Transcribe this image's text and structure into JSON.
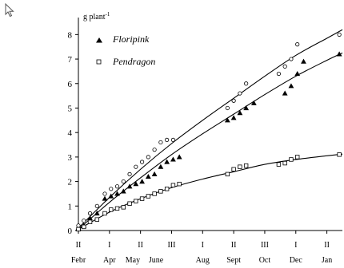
{
  "cursor": {
    "icon": "arrow-cursor-icon"
  },
  "chart_data": {
    "type": "scatter",
    "y_unit_label": "g plant",
    "y_unit_superscript": "-1",
    "ylim": [
      0,
      8.5
    ],
    "y_ticks": [
      0,
      1,
      2,
      3,
      4,
      5,
      6,
      7,
      8
    ],
    "x_domain": [
      0,
      34
    ],
    "x_axis_rows": {
      "dekads": [
        {
          "label": "II",
          "x": 0
        },
        {
          "label": "I",
          "x": 4
        },
        {
          "label": "II",
          "x": 8
        },
        {
          "label": "III",
          "x": 12
        },
        {
          "label": "I",
          "x": 16
        },
        {
          "label": "II",
          "x": 20
        },
        {
          "label": "III",
          "x": 24
        },
        {
          "label": "I",
          "x": 28
        },
        {
          "label": "II",
          "x": 32
        }
      ],
      "months": [
        {
          "label": "Febr",
          "x": 0
        },
        {
          "label": "Apr",
          "x": 4
        },
        {
          "label": "May",
          "x": 7
        },
        {
          "label": "June",
          "x": 10
        },
        {
          "label": "Aug",
          "x": 16
        },
        {
          "label": "Sept",
          "x": 20
        },
        {
          "label": "Oct",
          "x": 24
        },
        {
          "label": "Dec",
          "x": 28
        },
        {
          "label": "Jan",
          "x": 32
        }
      ]
    },
    "legend": {
      "placement": "top-left"
    },
    "series": [
      {
        "name": "Floripink",
        "marker": "triangle-filled",
        "points": [
          {
            "x": 0,
            "y": 0.1
          },
          {
            "x": 0.7,
            "y": 0.2
          },
          {
            "x": 1.5,
            "y": 0.5
          },
          {
            "x": 2.4,
            "y": 0.7
          },
          {
            "x": 3.4,
            "y": 1.3
          },
          {
            "x": 4.2,
            "y": 1.4
          },
          {
            "x": 5.0,
            "y": 1.5
          },
          {
            "x": 5.8,
            "y": 1.6
          },
          {
            "x": 6.6,
            "y": 1.8
          },
          {
            "x": 7.4,
            "y": 1.9
          },
          {
            "x": 8.2,
            "y": 2.0
          },
          {
            "x": 9.0,
            "y": 2.2
          },
          {
            "x": 9.8,
            "y": 2.3
          },
          {
            "x": 10.6,
            "y": 2.6
          },
          {
            "x": 11.4,
            "y": 2.8
          },
          {
            "x": 12.2,
            "y": 2.9
          },
          {
            "x": 13.0,
            "y": 3.0
          },
          {
            "x": 19.2,
            "y": 4.5
          },
          {
            "x": 20.0,
            "y": 4.6
          },
          {
            "x": 20.8,
            "y": 4.8
          },
          {
            "x": 21.6,
            "y": 5.0
          },
          {
            "x": 22.6,
            "y": 5.2
          },
          {
            "x": 26.6,
            "y": 5.6
          },
          {
            "x": 27.4,
            "y": 5.9
          },
          {
            "x": 28.2,
            "y": 6.4
          },
          {
            "x": 29.0,
            "y": 6.9
          },
          {
            "x": 33.6,
            "y": 7.2
          }
        ],
        "fit_curve": [
          {
            "x": 0,
            "y": 0.05
          },
          {
            "x": 4,
            "y": 1.15
          },
          {
            "x": 8,
            "y": 2.15
          },
          {
            "x": 12,
            "y": 3.1
          },
          {
            "x": 16,
            "y": 3.95
          },
          {
            "x": 20,
            "y": 4.75
          },
          {
            "x": 24,
            "y": 5.55
          },
          {
            "x": 28,
            "y": 6.3
          },
          {
            "x": 32,
            "y": 6.95
          },
          {
            "x": 34,
            "y": 7.25
          }
        ]
      },
      {
        "name": "",
        "marker": "circle-open",
        "points": [
          {
            "x": 0,
            "y": 0.2
          },
          {
            "x": 0.7,
            "y": 0.4
          },
          {
            "x": 1.5,
            "y": 0.7
          },
          {
            "x": 2.4,
            "y": 1.0
          },
          {
            "x": 3.4,
            "y": 1.5
          },
          {
            "x": 4.2,
            "y": 1.7
          },
          {
            "x": 5.0,
            "y": 1.8
          },
          {
            "x": 5.8,
            "y": 2.0
          },
          {
            "x": 6.6,
            "y": 2.3
          },
          {
            "x": 7.4,
            "y": 2.6
          },
          {
            "x": 8.2,
            "y": 2.8
          },
          {
            "x": 9.0,
            "y": 3.0
          },
          {
            "x": 9.8,
            "y": 3.3
          },
          {
            "x": 10.6,
            "y": 3.6
          },
          {
            "x": 11.4,
            "y": 3.7
          },
          {
            "x": 12.2,
            "y": 3.7
          },
          {
            "x": 19.2,
            "y": 5.0
          },
          {
            "x": 20.0,
            "y": 5.3
          },
          {
            "x": 20.8,
            "y": 5.6
          },
          {
            "x": 21.6,
            "y": 6.0
          },
          {
            "x": 25.8,
            "y": 6.4
          },
          {
            "x": 26.6,
            "y": 6.7
          },
          {
            "x": 27.4,
            "y": 7.0
          },
          {
            "x": 28.2,
            "y": 7.6
          },
          {
            "x": 33.6,
            "y": 8.0
          }
        ],
        "fit_curve": [
          {
            "x": 0,
            "y": 0.1
          },
          {
            "x": 4,
            "y": 1.35
          },
          {
            "x": 8,
            "y": 2.5
          },
          {
            "x": 12,
            "y": 3.55
          },
          {
            "x": 16,
            "y": 4.5
          },
          {
            "x": 20,
            "y": 5.4
          },
          {
            "x": 24,
            "y": 6.3
          },
          {
            "x": 28,
            "y": 7.15
          },
          {
            "x": 32,
            "y": 7.85
          },
          {
            "x": 34,
            "y": 8.2
          }
        ]
      },
      {
        "name": "Pendragon",
        "marker": "square-open",
        "points": [
          {
            "x": 0,
            "y": 0.05
          },
          {
            "x": 0.7,
            "y": 0.15
          },
          {
            "x": 1.5,
            "y": 0.35
          },
          {
            "x": 2.4,
            "y": 0.45
          },
          {
            "x": 3.4,
            "y": 0.7
          },
          {
            "x": 4.2,
            "y": 0.85
          },
          {
            "x": 5.0,
            "y": 0.9
          },
          {
            "x": 5.8,
            "y": 0.95
          },
          {
            "x": 6.6,
            "y": 1.1
          },
          {
            "x": 7.4,
            "y": 1.2
          },
          {
            "x": 8.2,
            "y": 1.3
          },
          {
            "x": 9.0,
            "y": 1.4
          },
          {
            "x": 9.8,
            "y": 1.5
          },
          {
            "x": 10.6,
            "y": 1.6
          },
          {
            "x": 11.4,
            "y": 1.7
          },
          {
            "x": 12.2,
            "y": 1.85
          },
          {
            "x": 13.0,
            "y": 1.9
          },
          {
            "x": 19.2,
            "y": 2.3
          },
          {
            "x": 20.0,
            "y": 2.5
          },
          {
            "x": 20.8,
            "y": 2.6
          },
          {
            "x": 21.6,
            "y": 2.65
          },
          {
            "x": 25.8,
            "y": 2.7
          },
          {
            "x": 26.6,
            "y": 2.75
          },
          {
            "x": 27.4,
            "y": 2.9
          },
          {
            "x": 28.2,
            "y": 3.0
          },
          {
            "x": 33.6,
            "y": 3.1
          }
        ],
        "fit_curve": [
          {
            "x": 0,
            "y": 0.05
          },
          {
            "x": 4,
            "y": 0.75
          },
          {
            "x": 8,
            "y": 1.3
          },
          {
            "x": 12,
            "y": 1.75
          },
          {
            "x": 16,
            "y": 2.1
          },
          {
            "x": 20,
            "y": 2.4
          },
          {
            "x": 24,
            "y": 2.7
          },
          {
            "x": 28,
            "y": 2.9
          },
          {
            "x": 32,
            "y": 3.05
          },
          {
            "x": 34,
            "y": 3.12
          }
        ]
      }
    ]
  }
}
